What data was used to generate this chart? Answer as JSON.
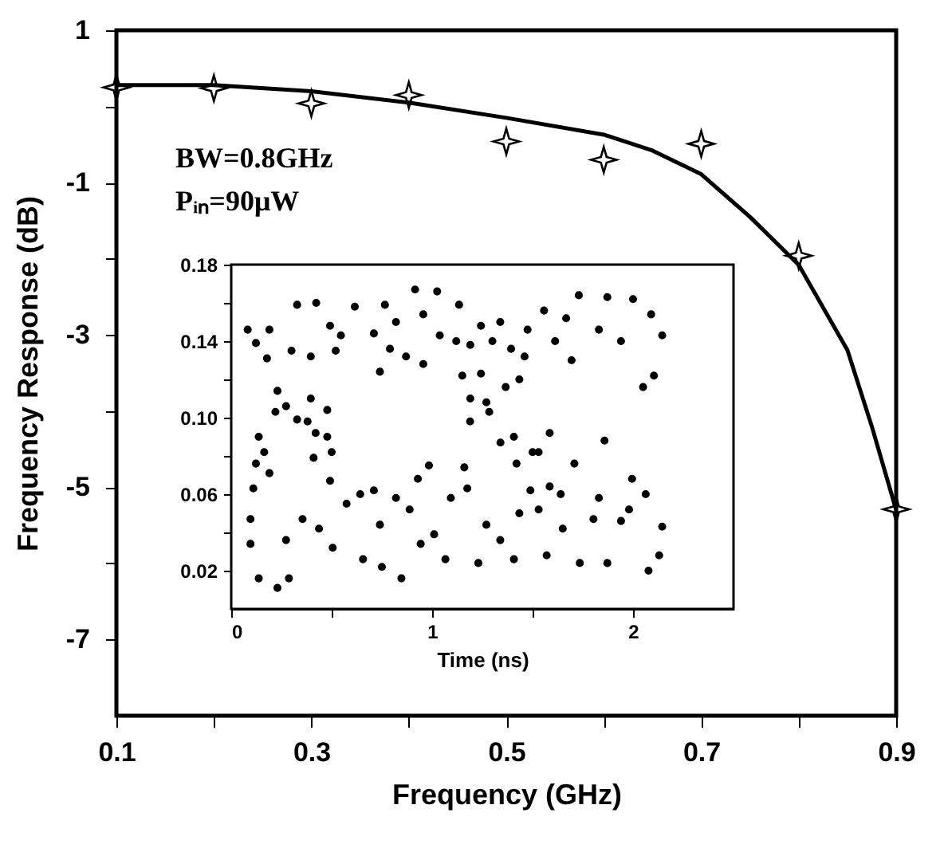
{
  "chart_data": [
    {
      "type": "scatter",
      "xlabel": "Frequency (GHz)",
      "ylabel": "Frequency Response (dB)",
      "xlim": [
        0.1,
        0.9
      ],
      "ylim": [
        -8,
        1
      ],
      "xticks": [
        0.1,
        {
          "value": 0.2,
          "label": null
        },
        0.3,
        {
          "value": 0.4,
          "label": null
        },
        0.5,
        {
          "value": 0.6,
          "label": null
        },
        0.7,
        {
          "value": 0.8,
          "label": null
        },
        0.9
      ],
      "yticks": [
        -7,
        {
          "value": -6,
          "label": null
        },
        -5,
        {
          "value": -4,
          "label": null
        },
        -3,
        {
          "value": -2,
          "label": null
        },
        -1,
        {
          "value": 0,
          "label": null
        },
        1
      ],
      "annotations": [
        "BW=0.8GHz",
        "Pᵢₙ=90μW"
      ],
      "series": [
        {
          "type": "line",
          "color": "#000000",
          "marker": "none",
          "line_style": "solid",
          "x": [
            0.1,
            0.2,
            0.3,
            0.4,
            0.5,
            0.6,
            0.65,
            0.7,
            0.75,
            0.8,
            0.85,
            0.875,
            0.9
          ],
          "values": [
            0.28,
            0.28,
            0.2,
            0.05,
            -0.15,
            -0.37,
            -0.58,
            -0.89,
            -1.45,
            -2.08,
            -3.2,
            -4.2,
            -5.3
          ]
        },
        {
          "type": "scatter",
          "color": "#000000",
          "marker": "star",
          "x": [
            0.1,
            0.2,
            0.3,
            0.4,
            0.5,
            0.6,
            0.7,
            0.8,
            0.9
          ],
          "values": [
            0.25,
            0.24,
            0.04,
            0.15,
            -0.46,
            -0.7,
            -0.49,
            -1.96,
            -5.29
          ]
        }
      ]
    },
    {
      "type": "scatter",
      "xlabel": "Time (ns)",
      "xlim": [
        0,
        2.5
      ],
      "ylim": [
        0,
        0.18
      ],
      "xticks": [
        0,
        {
          "value": 0.5,
          "label": null
        },
        1,
        {
          "value": 1.5,
          "label": null
        },
        2
      ],
      "yticks": [
        0.02,
        {
          "value": 0.04,
          "label": null
        },
        0.06,
        {
          "value": 0.08,
          "label": null
        },
        {
          "value": 0.1,
          "label": "0.10"
        },
        {
          "value": 0.12,
          "label": null
        },
        0.14,
        {
          "value": 0.16,
          "label": null
        },
        0.18
      ],
      "series": [
        {
          "color": "#000000",
          "marker": "circle",
          "x": [
            0.123,
            0.082,
            0.19,
            0.178,
            0.23,
            0.273,
            0.328,
            0.38,
            0.42,
            0.478,
            0.5,
            0.137,
            0.123,
            0.11,
            0.096,
            0.096,
            0.137,
            0.23,
            0.287,
            0.273,
            0.355,
            0.437,
            0.505,
            0.574,
            0.642,
            0.71,
            0.74,
            0.656,
            0.75,
            0.847,
            0.82,
            0.888,
            0.929,
            0.984,
            0.943,
            1.01,
            1.066,
            1.093,
            1.175,
            1.16,
            1.23,
            1.27,
            1.339,
            1.407,
            1.434,
            1.489,
            1.53,
            1.585,
            1.64,
            1.57,
            1.65,
            1.735,
            1.803,
            1.872,
            1.94,
            1.995,
            2.063,
            2.077,
            2.145,
            2.13,
            1.98,
            1.83,
            1.407,
            1.34,
            1.284,
            1.189,
            1.19,
            1.27,
            1.366,
            1.434,
            1.46,
            1.5,
            1.42,
            1.585,
            1.708,
            1.858,
            1.53,
            0.328,
            0.423,
            0.492,
            0.546,
            0.615,
            0.71,
            0.765,
            0.82,
            0.915,
            0.956,
            1.025,
            1.038,
            1.12,
            1.134,
            1.19,
            1.243,
            1.3,
            1.339,
            1.393,
            1.475,
            1.557,
            1.612,
            1.667,
            1.694,
            1.73,
            1.83,
            1.872,
            1.94,
            2.0,
            2.05,
            2.09,
            2.145,
            2.104,
            1.243,
            1.15,
            0.74,
            0.956,
            0.396,
            0.3,
            0.52,
            0.79,
            0.87,
            0.22,
            0.164,
            0.19,
            0.396,
            0.478,
            0.41,
            0.492
          ],
          "values": [
            0.139,
            0.146,
            0.146,
            0.131,
            0.114,
            0.106,
            0.099,
            0.098,
            0.092,
            0.09,
            0.082,
            0.09,
            0.076,
            0.063,
            0.047,
            0.034,
            0.016,
            0.011,
            0.016,
            0.036,
            0.047,
            0.042,
            0.032,
            0.055,
            0.06,
            0.062,
            0.044,
            0.026,
            0.022,
            0.016,
            0.058,
            0.052,
            0.068,
            0.075,
            0.034,
            0.039,
            0.026,
            0.058,
            0.063,
            0.074,
            0.024,
            0.044,
            0.036,
            0.026,
            0.05,
            0.062,
            0.052,
            0.064,
            0.06,
            0.028,
            0.042,
            0.024,
            0.047,
            0.024,
            0.046,
            0.068,
            0.06,
            0.02,
            0.043,
            0.028,
            0.052,
            0.058,
            0.09,
            0.087,
            0.103,
            0.098,
            0.11,
            0.108,
            0.116,
            0.12,
            0.132,
            0.082,
            0.076,
            0.092,
            0.076,
            0.088,
            0.082,
            0.159,
            0.16,
            0.148,
            0.143,
            0.158,
            0.144,
            0.159,
            0.15,
            0.167,
            0.154,
            0.166,
            0.143,
            0.14,
            0.159,
            0.138,
            0.148,
            0.14,
            0.15,
            0.136,
            0.146,
            0.156,
            0.14,
            0.152,
            0.13,
            0.164,
            0.146,
            0.163,
            0.14,
            0.162,
            0.116,
            0.154,
            0.143,
            0.122,
            0.123,
            0.122,
            0.124,
            0.128,
            0.132,
            0.135,
            0.135,
            0.136,
            0.132,
            0.103,
            0.082,
            0.071,
            0.11,
            0.104,
            0.079,
            0.067
          ]
        }
      ]
    }
  ]
}
